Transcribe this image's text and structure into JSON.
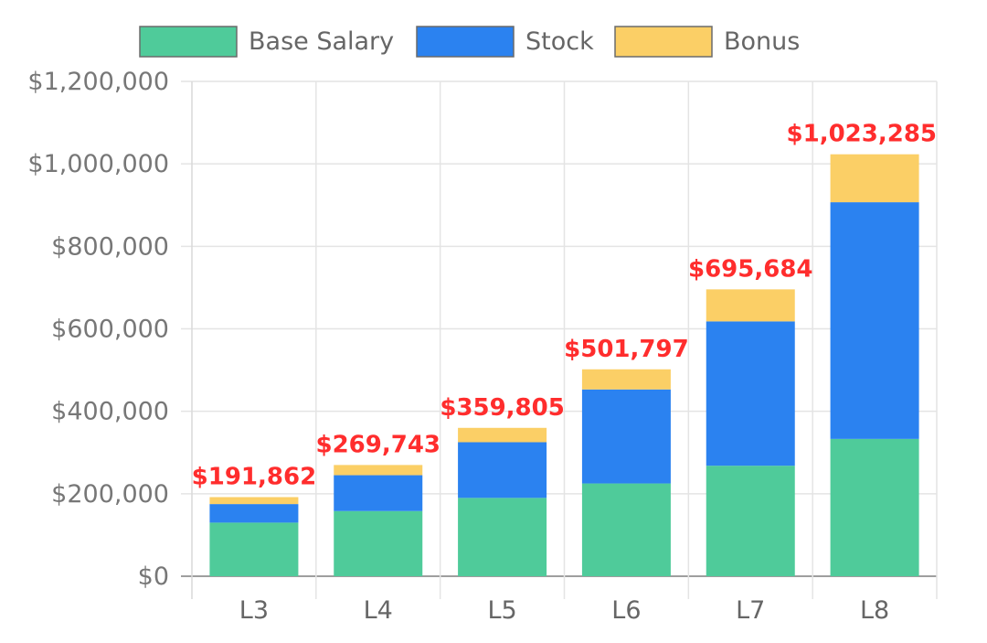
{
  "chart_data": {
    "type": "bar",
    "stacked": true,
    "categories": [
      "L3",
      "L4",
      "L5",
      "L6",
      "L7",
      "L8"
    ],
    "series": [
      {
        "name": "Base Salary",
        "color": "#4fcb9a",
        "values": [
          130000,
          158000,
          190000,
          225000,
          268000,
          333000
        ]
      },
      {
        "name": "Stock",
        "color": "#2b82f0",
        "values": [
          45000,
          87000,
          135000,
          228000,
          350000,
          574000
        ]
      },
      {
        "name": "Bonus",
        "color": "#fbcf66",
        "values": [
          16862,
          24743,
          34805,
          48797,
          77684,
          116285
        ]
      }
    ],
    "totals": [
      191862,
      269743,
      359805,
      501797,
      695684,
      1023285
    ],
    "total_labels": [
      "$191,862",
      "$269,743",
      "$359,805",
      "$501,797",
      "$695,684",
      "$1,023,285"
    ],
    "total_label_color": "#ff2d2d",
    "ylim": [
      0,
      1200000
    ],
    "yticks": [
      0,
      200000,
      400000,
      600000,
      800000,
      1000000,
      1200000
    ],
    "ytick_labels": [
      "$0",
      "$200,000",
      "$400,000",
      "$600,000",
      "$800,000",
      "$1,000,000",
      "$1,200,000"
    ],
    "grid": true,
    "legend_position": "top",
    "title": "",
    "xlabel": "",
    "ylabel": ""
  }
}
